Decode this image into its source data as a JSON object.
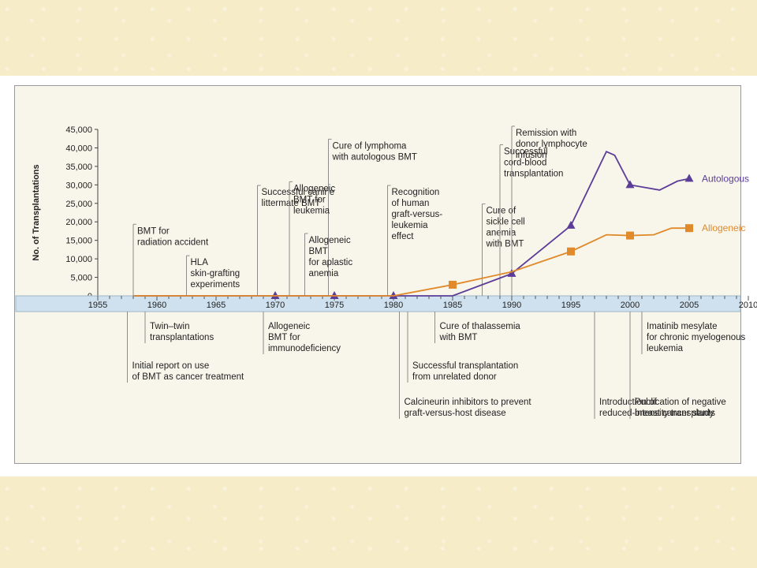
{
  "colors": {
    "autologous": "#5b3d98",
    "allogeneic": "#e08a2c",
    "axis_band": "#cfe1ee",
    "annotation_line": "#8c8c8c"
  },
  "chart_data": {
    "type": "line",
    "ylabel": "No. of Transplantations",
    "xlim": [
      1955,
      2010
    ],
    "ylim": [
      0,
      45000
    ],
    "x_ticks": [
      "1955",
      "1960",
      "1965",
      "1970",
      "1975",
      "1980",
      "1985",
      "1990",
      "1995",
      "2000",
      "2005",
      "2010"
    ],
    "y_ticks": [
      "0",
      "5,000",
      "10,000",
      "15,000",
      "20,000",
      "25,000",
      "30,000",
      "35,000",
      "40,000",
      "45,000"
    ],
    "series": [
      {
        "name": "Autologous",
        "color": "#5b3d98",
        "marker": "triangle",
        "points": [
          [
            1958,
            0
          ],
          [
            1970,
            0
          ],
          [
            1975,
            0
          ],
          [
            1980,
            0
          ],
          [
            1985,
            0
          ],
          [
            1990,
            6000
          ],
          [
            1995,
            19000
          ],
          [
            1998,
            39000
          ],
          [
            1998.7,
            38000
          ],
          [
            2000,
            30000
          ],
          [
            2002.5,
            28600
          ],
          [
            2004,
            31000
          ],
          [
            2005,
            31700
          ]
        ],
        "marked_x": [
          1970,
          1975,
          1980,
          1990,
          1995,
          2000,
          2005
        ]
      },
      {
        "name": "Allogeneic",
        "color": "#e08a2c",
        "marker": "square",
        "points": [
          [
            1958,
            0
          ],
          [
            1970,
            0
          ],
          [
            1975,
            0
          ],
          [
            1980,
            0
          ],
          [
            1985,
            3000
          ],
          [
            1990,
            6500
          ],
          [
            1995,
            12000
          ],
          [
            1998,
            16500
          ],
          [
            2000,
            16300
          ],
          [
            2002,
            16500
          ],
          [
            2003.5,
            18300
          ],
          [
            2005,
            18300
          ]
        ],
        "marked_x": [
          1985,
          1995,
          2000,
          2005
        ]
      }
    ],
    "annotations_above": [
      {
        "year": 1958,
        "lines": [
          "BMT for",
          "radiation accident"
        ],
        "text_top": 18500
      },
      {
        "year": 1962.5,
        "lines": [
          "HLA",
          "skin-grafting",
          "experiments"
        ],
        "text_top": 10000
      },
      {
        "year": 1968.5,
        "lines": [
          "Successful canine",
          "littermate BMT"
        ],
        "text_top": 29000
      },
      {
        "year": 1974.5,
        "lines": [
          "Cure of lymphoma",
          "with autologous BMT"
        ],
        "text_top": 41500
      },
      {
        "year": 1971.2,
        "lines": [
          "Allogeneic",
          "BMT for",
          "leukemia"
        ],
        "text_top": 30000
      },
      {
        "year": 1972.5,
        "lines": [
          "Allogeneic",
          "BMT",
          "for aplastic",
          "anemia"
        ],
        "text_top": 16000
      },
      {
        "year": 1979.5,
        "lines": [
          "Recognition",
          "of human",
          "graft-versus-",
          "leukemia",
          "effect"
        ],
        "text_top": 29000
      },
      {
        "year": 1987.5,
        "lines": [
          "Cure of",
          "sickle cell",
          "anemia",
          "with BMT"
        ],
        "text_top": 24000
      },
      {
        "year": 1989,
        "lines": [
          "Successful",
          "cord-blood",
          "transplantation"
        ],
        "text_top": 40000
      },
      {
        "year": 1990,
        "lines": [
          "Remission with",
          "donor lymphocyte",
          "infusion"
        ],
        "text_top": 45000
      }
    ],
    "annotations_below": [
      {
        "year": 1959,
        "lines": [
          "Twin–twin",
          "transplantations"
        ],
        "depth": 1
      },
      {
        "year": 1957.5,
        "lines": [
          "Initial report on use",
          "of BMT as cancer treatment"
        ],
        "depth": 2
      },
      {
        "year": 1969,
        "lines": [
          "Allogeneic",
          "BMT for",
          "immunodeficiency"
        ],
        "depth": 1
      },
      {
        "year": 1980.5,
        "lines": [
          "Calcineurin inhibitors to prevent",
          "graft-versus-host disease"
        ],
        "depth": 3
      },
      {
        "year": 1983.5,
        "lines": [
          "Cure of thalassemia",
          "with BMT"
        ],
        "depth": 1
      },
      {
        "year": 1981.2,
        "lines": [
          "Successful transplantation",
          "from unrelated donor"
        ],
        "depth": 2
      },
      {
        "year": 1997,
        "lines": [
          "Introduction of",
          "reduced-intensity transplants"
        ],
        "depth": 3
      },
      {
        "year": 2001,
        "lines": [
          "Imatinib mesylate",
          "for chronic myelogenous",
          "leukemia"
        ],
        "depth": 1
      },
      {
        "year": 2000,
        "lines": [
          "Publication of negative",
          "breast cancer study"
        ],
        "depth": 3
      }
    ]
  }
}
